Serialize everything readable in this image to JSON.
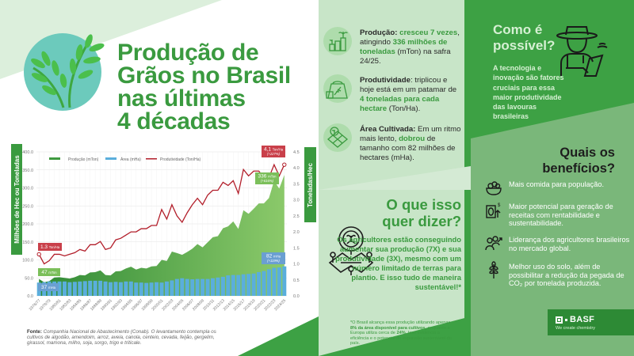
{
  "title": {
    "line1": "Produção de",
    "line2": "Grãos no Brasil",
    "line3": "nas últimas",
    "line4": "4 décadas"
  },
  "source": {
    "label": "Fonte:",
    "text": " Companhia Nacional de Abastecimento (Conab). O levantamento contempla os cultivos de algodão, amendoim, arroz, aveia, canola, centeio, cevada, feijão, gergelim, girassol, mamona, milho, soja, sorgo, trigo e triticale."
  },
  "chart_data": {
    "type": "bar+area+line",
    "title": "",
    "ylabel_left": "Milhões de Hec ou Toneladas",
    "ylabel_right": "Toneladas/Hec",
    "ylim_left": [
      0,
      400
    ],
    "ylim_right": [
      0,
      4.5
    ],
    "yticks_left": [
      "400.0",
      "350.0",
      "300.0",
      "250.0",
      "200.0",
      "150.0",
      "100.0",
      "50.0",
      "0.0"
    ],
    "yticks_right": [
      "4.5",
      "4.0",
      "3.5",
      "3.0",
      "2.5",
      "2.0",
      "1.5",
      "1.0",
      "0.5",
      "0.0"
    ],
    "legend": [
      "Produção (mTon)",
      "Área (mHa)",
      "Produtividade (Ton/Ha)"
    ],
    "legend_position": "top",
    "grid": true,
    "x_tick_labels": [
      "1976/77",
      "1978/79",
      "1980/81",
      "1982/83",
      "1984/85",
      "1986/87",
      "1988/89",
      "1990/91",
      "1992/93",
      "1994/95",
      "1996/97",
      "1998/99",
      "2000/01",
      "2002/03",
      "2004/05",
      "2006/07",
      "2008/09",
      "2010/11",
      "2012/13",
      "2014/15",
      "2016/17",
      "2018/19",
      "2020/21",
      "2022/23",
      "2024/25"
    ],
    "categories": [
      "1976/77",
      "1977/78",
      "1978/79",
      "1979/80",
      "1980/81",
      "1981/82",
      "1982/83",
      "1983/84",
      "1984/85",
      "1985/86",
      "1986/87",
      "1987/88",
      "1988/89",
      "1989/90",
      "1990/91",
      "1991/92",
      "1992/93",
      "1993/94",
      "1994/95",
      "1995/96",
      "1996/97",
      "1997/98",
      "1998/99",
      "1999/00",
      "2000/01",
      "2001/02",
      "2002/03",
      "2003/04",
      "2004/05",
      "2005/06",
      "2006/07",
      "2007/08",
      "2008/09",
      "2009/10",
      "2010/11",
      "2011/12",
      "2012/13",
      "2013/14",
      "2014/15",
      "2015/16",
      "2016/17",
      "2017/18",
      "2018/19",
      "2019/20",
      "2020/21",
      "2021/22",
      "2022/23",
      "2023/24",
      "2024/25"
    ],
    "series": [
      {
        "name": "Produção (mTon)",
        "type": "area",
        "color": "#3f9a40",
        "values": [
          47,
          38,
          41,
          51,
          52,
          50,
          48,
          52,
          58,
          57,
          65,
          66,
          71,
          58,
          57,
          68,
          69,
          76,
          81,
          73,
          78,
          76,
          82,
          83,
          100,
          97,
          123,
          119,
          114,
          122,
          131,
          144,
          135,
          149,
          163,
          166,
          188,
          193,
          207,
          186,
          238,
          228,
          242,
          257,
          257,
          272,
          320,
          298,
          336
        ]
      },
      {
        "name": "Área (mHa)",
        "type": "bar",
        "color": "#5aaedc",
        "values": [
          37,
          38,
          40,
          40,
          40,
          40,
          38,
          39,
          40,
          41,
          42,
          42,
          42,
          40,
          38,
          39,
          38,
          40,
          40,
          37,
          37,
          36,
          37,
          38,
          37,
          40,
          43,
          47,
          49,
          47,
          46,
          47,
          47,
          47,
          49,
          51,
          53,
          57,
          58,
          58,
          60,
          61,
          62,
          66,
          69,
          74,
          78,
          79,
          82
        ]
      },
      {
        "name": "Produtividade (Ton/Ha)",
        "type": "line",
        "color": "#b21e2a",
        "values": [
          1.3,
          1.0,
          1.1,
          1.3,
          1.3,
          1.25,
          1.3,
          1.35,
          1.45,
          1.4,
          1.6,
          1.6,
          1.7,
          1.45,
          1.5,
          1.75,
          1.8,
          1.9,
          2.0,
          2.0,
          2.1,
          2.1,
          2.2,
          2.2,
          2.7,
          2.4,
          2.85,
          2.5,
          2.3,
          2.6,
          2.85,
          3.05,
          2.85,
          3.15,
          3.3,
          3.3,
          3.55,
          3.45,
          3.6,
          3.2,
          3.95,
          3.75,
          3.9,
          3.9,
          3.7,
          3.7,
          4.1,
          3.75,
          4.1
        ]
      }
    ],
    "annotations": [
      {
        "label": "1.3",
        "unit": "Ton/Ha",
        "series": "Produtividade",
        "position": "start"
      },
      {
        "label": "47",
        "unit": "mTon",
        "series": "Produção",
        "position": "start"
      },
      {
        "label": "37",
        "unit": "mHa",
        "series": "Área",
        "position": "start"
      },
      {
        "label": "4,1",
        "unit": "Ton/Ha",
        "sub": "(+227%)",
        "series": "Produtividade",
        "position": "end"
      },
      {
        "label": "336",
        "unit": "mTon",
        "sub": "(+616%)",
        "series": "Produção",
        "position": "end"
      },
      {
        "label": "82",
        "unit": "mHa",
        "sub": "(+119%)",
        "series": "Área",
        "position": "end"
      }
    ]
  },
  "stats": [
    {
      "icon": "growth-plant-icon",
      "parts": [
        {
          "t": "Produção: ",
          "s": "b"
        },
        {
          "t": "cresceu 7 vezes",
          "s": "g"
        },
        {
          "t": ", atingindo ",
          "s": ""
        },
        {
          "t": "336 milhões de toneladas",
          "s": "g"
        },
        {
          "t": " (mTon) na safra 24/25.",
          "s": ""
        }
      ]
    },
    {
      "icon": "grain-sack-icon",
      "parts": [
        {
          "t": "Produtividade",
          "s": "b"
        },
        {
          "t": ": triplicou e hoje está em um patamar de ",
          "s": ""
        },
        {
          "t": "4 toneladas para cada hectare",
          "s": "g"
        },
        {
          "t": " (Ton/Ha).",
          "s": ""
        }
      ]
    },
    {
      "icon": "field-plots-icon",
      "parts": [
        {
          "t": "Área Cultivada:",
          "s": "b"
        },
        {
          "t": " Em um ritmo mais lento, ",
          "s": ""
        },
        {
          "t": "dobrou",
          "s": "g"
        },
        {
          "t": " de tamanho com 82 milhões de hectares (mHa).",
          "s": ""
        }
      ]
    }
  ],
  "meaning": {
    "title_line1": "O que isso",
    "title_line2": "quer dizer?",
    "body": "Os agricultores estão conseguindo aumentar sua produção (7X) e sua produtividade (3X), mesmo com um número limitado de terras para plantio. E isso tudo de maneira sustentável!*",
    "note_a": "*O Brasil alcança essa produção utilizando apenas ",
    "note_b": "8% da área disponível para cultivos,",
    "note_c": " enquanto a Europa utiliza cerca de ",
    "note_d": "24%",
    "note_e": ". Isso evidencia a eficiência e o potencial de expansão sustentável do país."
  },
  "how": {
    "title_line1": "Como é",
    "title_line2": "possível?",
    "body": "A tecnologia e inovação são fatores cruciais para essa maior produtividade das lavouras brasileiras"
  },
  "benefits": {
    "title_line1": "Quais os",
    "title_line2": "benefícios?",
    "items": [
      {
        "icon": "food-bowl-icon",
        "text": "Mais comida para população."
      },
      {
        "icon": "revenue-growth-icon",
        "text": "Maior potencial para geração de receitas com rentabilidade e sustentabilidade."
      },
      {
        "icon": "leadership-people-icon",
        "text": "Liderança dos agricultores brasileiros no mercado global."
      },
      {
        "icon": "wheat-icon",
        "text": "Melhor uso do solo, além de possibilitar a redução da pegada de CO₂ por tonelada produzida."
      }
    ]
  },
  "brand": {
    "name": "BASF",
    "tagline": "We create chemistry"
  },
  "colors": {
    "brand_green": "#3a9a3f",
    "dark_green": "#2d8a35",
    "mid_panel": "#c8e5c8",
    "right_panel": "#7ab77a",
    "productivity_red": "#b21e2a",
    "area_blue": "#5aaedc"
  }
}
